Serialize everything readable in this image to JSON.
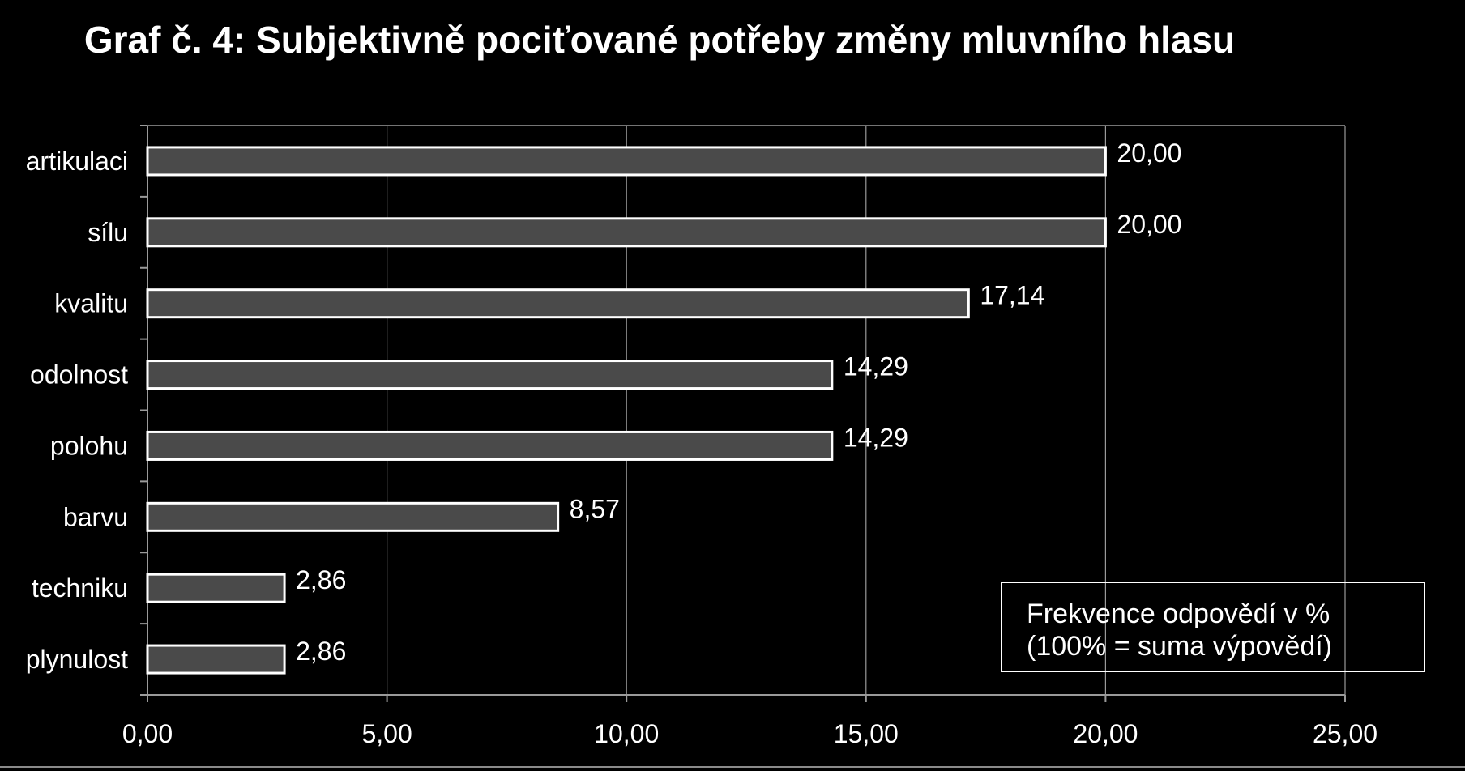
{
  "chart_data": {
    "type": "bar",
    "orientation": "horizontal",
    "title": "Graf č. 4:  Subjektivně pociťované potřeby změny mluvního hlasu",
    "categories": [
      "artikulaci",
      "sílu",
      "kvalitu",
      "odolnost",
      "polohu",
      "barvu",
      "techniku",
      "plynulost"
    ],
    "values": [
      20.0,
      20.0,
      17.14,
      14.29,
      14.29,
      8.57,
      2.86,
      2.86
    ],
    "value_labels": [
      "20,00",
      "20,00",
      "17,14",
      "14,29",
      "14,29",
      "8,57",
      "2,86",
      "2,86"
    ],
    "x_ticks": [
      0,
      5,
      10,
      15,
      20,
      25
    ],
    "x_tick_labels": [
      "0,00",
      "5,00",
      "10,00",
      "15,00",
      "20,00",
      "25,00"
    ],
    "xlim": [
      0,
      25
    ],
    "grid": true,
    "legend_lines": [
      "Frekvence odpovědí v %",
      "(100% = suma výpovědí)"
    ],
    "legend_position": "bottom-right",
    "colors": {
      "background": "#000000",
      "bar_fill": "#4a4a4a",
      "bar_stroke": "#ffffff",
      "grid": "#9a9a9a",
      "axis": "#9a9a9a",
      "text": "#ffffff"
    }
  }
}
